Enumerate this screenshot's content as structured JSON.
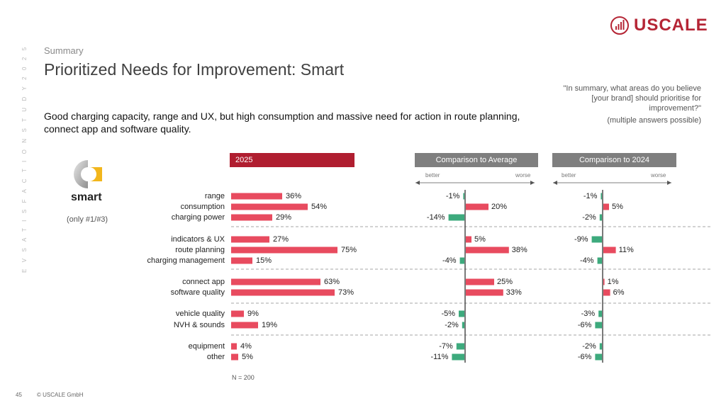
{
  "header": {
    "section": "Summary",
    "title": "Prioritized Needs for Improvement: Smart",
    "headline": "Good charging capacity, range and UX, but high consumption and massive need for action in route planning, connect app and software quality.",
    "question": "\"In summary, what areas do you believe [your brand] should prioritise for improvement?\"",
    "question_note": "(multiple answers possible)",
    "side_label": "E V  S A T I S F A C T I O N  S T U D Y  2 0 2 5"
  },
  "logo": {
    "text": "USCALE",
    "icon": "bar-chart-circle-icon",
    "color": "#b52535"
  },
  "brand": {
    "name": "smart",
    "icon": "smart-logo-icon",
    "note": "(only #1/#3)"
  },
  "footer": {
    "page": "45",
    "copyright": "© USCALE GmbH",
    "sample": "N = 200"
  },
  "colors": {
    "positive": "#e84b5f",
    "negative": "#3daa7d",
    "header_2025": "#b01e30",
    "header_gray": "#7f7f7f"
  },
  "chart_data": {
    "type": "bar",
    "categories": [
      "range",
      "consumption",
      "charging power",
      "indicators & UX",
      "route planning",
      "charging management",
      "connect app",
      "software quality",
      "vehicle quality",
      "NVH & sounds",
      "equipment",
      "other"
    ],
    "groups": [
      [
        0,
        1,
        2
      ],
      [
        3,
        4,
        5
      ],
      [
        6,
        7
      ],
      [
        8,
        9
      ],
      [
        10,
        11
      ]
    ],
    "series": [
      {
        "name": "2025",
        "values": [
          36,
          54,
          29,
          27,
          75,
          15,
          63,
          73,
          9,
          19,
          4,
          5
        ]
      },
      {
        "name": "Comparison to Average",
        "values": [
          -1,
          20,
          -14,
          5,
          38,
          -4,
          25,
          33,
          -5,
          -2,
          -7,
          -11
        ]
      },
      {
        "name": "Comparison to 2024",
        "values": [
          -1,
          5,
          -2,
          -9,
          11,
          -4,
          1,
          6,
          -3,
          -6,
          -2,
          -6
        ]
      }
    ],
    "value_suffix": "%",
    "scale_labels": {
      "left": "better",
      "right": "worse"
    }
  }
}
